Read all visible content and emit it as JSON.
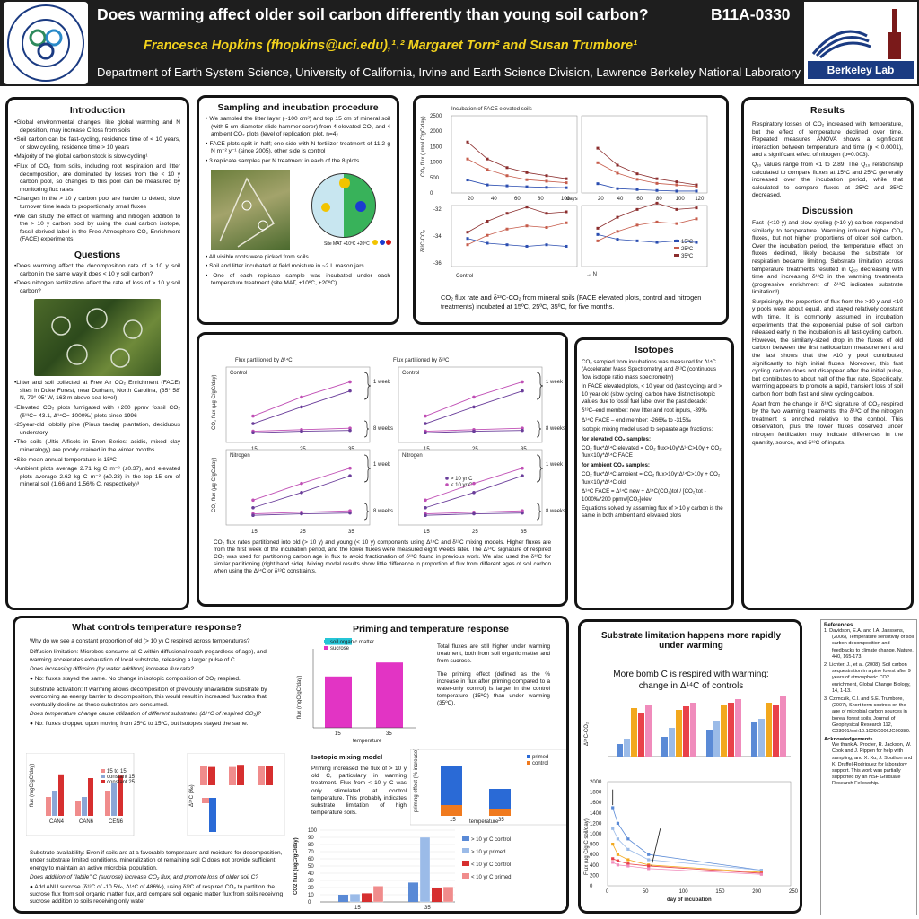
{
  "header": {
    "title": "Does warming affect older soil carbon differently than young soil carbon?",
    "code": "B11A-0330",
    "authors": "Francesca Hopkins (fhopkins@uci.edu),¹˒²  Margaret Torn² and Susan Trumbore¹",
    "department": "Department of Earth System Science, University of California, Irvine and Earth Science Division, Lawrence Berkeley National Laboratory",
    "uci_seal": "UCI Department of Earth System Science",
    "lbl_logo": "Berkeley Lab",
    "lbl_icon": "berkeley-lab-arcs-icon"
  },
  "intro": {
    "title": "Introduction",
    "items": [
      "•Global environmental changes, like global warming and N deposition, may increase C loss from soils",
      "•Soil carbon can be fast-cycling, residence time of < 10 years, or slow cycling, residence time > 10 years",
      "•Majority of the global carbon stock is slow-cycling¹",
      "•Flux of CO₂ from soils, including root respiration and litter decomposition, are dominated by losses from the < 10 y carbon pool, so changes to this pool can be measured by monitoring flux rates",
      "•Changes in the > 10 y carbon pool are harder to detect; slow turnover time leads to proportionally small fluxes",
      "•We can study the effect of warming and nitrogen addition to the > 10 y carbon pool by using the dual carbon isotope, fossil-derived label in the Free Atmosphere CO₂ Enrichment (FACE) experiments"
    ],
    "questions_title": "Questions",
    "questions": [
      "•Does warming affect the decomposition rate of > 10 y soil carbon in the same way it does < 10 y soil carbon?",
      "•Does nitrogen fertilization affect the rate of loss of > 10 y soil carbon?"
    ],
    "site": [
      "•Litter and soil collected at Free Air CO₂ Enrichment (FACE) sites in Duke Forest, near Durham, North Carolina, (35° 58' N, 79° 05' W, 163 m above sea level)",
      "•Elevated CO₂ plots fumigated with +200 ppmv fossil CO₂ (δ¹³C=-43.1, Δ¹⁴C=-1000‰) plots since 1996",
      "•25year-old loblolly pine (Pinus taeda) plantation, deciduous understory",
      "•The soils (Ultic Alfisols in Enon Series: acidic, mixed clay mineralogy) are poorly drained in the winter months",
      "•Site mean annual temperature is 15ºC",
      "•Ambient plots average 2.71 kg C m⁻² (±0.37), and elevated plots average 2.62 kg C m⁻² (±0.23) in the top 15 cm of mineral soil (1.66 and 1.56% C, respectively)³"
    ]
  },
  "methods": {
    "title": "Sampling and incubation procedure",
    "items": [
      "• We sampled the litter layer (~100 cm²) and top 15 cm of mineral soil (with 5 cm diameter slide hammer corer) from 4 elevated CO₂ and 4 ambient CO₂ plots (level of replication: plot, n=4)",
      "• FACE plots split in half; one side with N fertilizer treatment of 11.2 g N m⁻² y⁻¹ (since 2005), other side is control",
      "• 3 replicate samples per N treatment in each of the 8 plots"
    ],
    "legend": "Site MAT +10ºC +20ºC",
    "items2": [
      "• All visible roots were picked from soils",
      "• Soil and litter incubated at field moisture in ~2 L mason jars",
      "• One of each replicate sample was incubated under each temperature treatment (site MAT, +10ºC, +20ºC)"
    ]
  },
  "top_chart": {
    "title": "Incubation of FACE elevated soils",
    "ylabel1": "CO₂ flux (umol C/gC/day)",
    "ylabel2": "δ¹³C-CO₂",
    "yticks1": [
      "2500",
      "2000",
      "1500",
      "1000",
      "500",
      "0"
    ],
    "yticks2": [
      "-32",
      "-34",
      "-36"
    ],
    "xticks_left": [
      "20",
      "40",
      "60",
      "80",
      "100"
    ],
    "xticks_right": [
      "20",
      "40",
      "60",
      "80",
      "100",
      "120"
    ],
    "xunit": "days",
    "label_left": "Control",
    "label_right": "→ N",
    "legend": [
      "15ºC",
      "25ºC",
      "35ºC"
    ],
    "caption": "CO₂ flux rate and δ¹³C-CO₂ from mineral soils (FACE elevated plots, control and nitrogen treatments) incubated at 15ºC, 25ºC, 35ºC,  for five months."
  },
  "results": {
    "title": "Results",
    "p1": "Respiratory losses of CO₂ increased with temperature, but the effect of temperature declined over time.  Repeated measures ANOVA shows a significant interaction between temperature and time (p < 0.0001), and a significant effect of nitrogen (p=0.003).",
    "p2": "Q₁₀ values range from <1 to 2.89.  The Q₁₀ relationship calculated to compare fluxes at 15ºC and 25ºC generally increased over the incubation period, while that calculated to compare fluxes at 25ºC and 35ºC decreased.",
    "disc_title": "Discussion",
    "d1": "Fast- (<10 y) and slow cycling (>10 y) carbon responded similarly to temperature.  Warming induced higher CO₂ fluxes, but not higher proportions of older soil carbon.  Over the incubation period, the temperature effect on fluxes declined, likely because the substrate for respiration became limiting.  Substrate limitation across temperature treatments resulted in Q₁₀ decreasing with time and increasing δ¹³C in the warming treatments (progressive enrichment of δ¹³C indicates substrate limitation³).",
    "d2": "Surprisingly, the proportion of flux from the >10 y and <10 y pools were about equal, and stayed relatively constant with time.  It is commonly assumed in incubation experiments that the exponential pulse of soil carbon released early in the incubation is all fast-cycling carbon.  However, the similarly-sized drop in the fluxes of old carbon between the first radiocarbon measurement and the last shows that the >10 y pool contributed significantly to high initial fluxes.  Moreover, this fast cycling carbon does not disappear after the initial pulse, but contributes to about half of the flux rate.  Specifically, warming appears to promote a rapid, transient loss of soil carbon from both fast and slow cycling carbon.",
    "d3": "Apart from the change in δ¹³C signature of CO₂ respired by the two warming treatments, the δ¹³C of the nitrogen treatment is enriched relative to the control.  This observation, plus the lower fluxes observed under nitrogen fertilization may indicate differences in the quantity, source, and δ¹³C of inputs."
  },
  "partition": {
    "title_left": "Flux partitioned by Δ¹⁴C",
    "title_right": "Flux partitioned by δ¹³C",
    "control": "Control",
    "nitrogen": "Nitrogen",
    "week1": "1 week",
    "week8": "8 weeks",
    "ylabel": "CO₂ flux (µg C/gC/day)",
    "xticks": [
      "15",
      "25",
      "35"
    ],
    "legend": [
      "> 10 yr C",
      "< 10 yr C"
    ],
    "caption": "CO₂ flux rates partitioned into old (> 10 y) and young (< 10 y) components using Δ¹⁴C and δ¹³C mixing models.  Higher fluxes are from the first week of the incubation period, and the lower fluxes were measured eight weeks later. The Δ¹⁴C signature of respired CO₂ was used for partitioning carbon age in flux to avoid fractionation of  δ¹³C found in previous work.  We also used the δ¹³C for similar partitioning (right hand side).  Mixing model results show little difference in proportion of flux from different ages of soil carbon when using the Δ¹⁴C or δ¹³C constraints."
  },
  "isotopes": {
    "title": "Isotopes",
    "p1": "CO₂ sampled from incubations was measured for Δ¹⁴C (Accelerator Mass Spectrometry) and δ¹³C (continuous flow isotope ratio mass spectrometry)",
    "p2": "In FACE elevated plots, < 10 year old (fast cycling) and > 10 year old (slow cycling) carbon have distinct isotopic values due to fossil fuel label over the past decade:",
    "p3": "δ¹³C–end member: new litter and root inputs, -39‰",
    "p4": "Δ¹⁴C FACE – end member: -266‰ to -315‰",
    "p5": "Isotopic mixing model used to separate age fractions:",
    "h1": "for elevated CO₂ samples:",
    "e1": "CO₂ flux*Δ¹⁴C elevated = CO₂ flux>10y*Δ¹⁴C>10y + CO₂ flux<10y*Δ¹⁴C FACE",
    "h2": "for ambient CO₂ samples:",
    "e2": "CO₂ flux*Δ¹⁴C ambient = CO₂ flux>10y*Δ¹⁴C>10y + CO₂ flux<10y*Δ¹⁴C old",
    "e3": "Δ¹⁴C FACE = Δ¹⁴C new + Δ¹⁴C(CO₂)tot / [CO₂]tot - 1000‰*200 ppmv/[CO₂]elev",
    "p6": "Equations solved by assuming flux of > 10 y carbon is the same in both ambient and elevated plots"
  },
  "temp": {
    "title": "What controls temperature response?",
    "q": "Why do we see a constant proportion of old (> 10 y) C respired across temperatures?",
    "dl": "Diffusion limitation: Microbes consume all C within diffusional reach (regardless of age), and warming accelerates exhaustion of local substrate, releasing a larger pulse of C.",
    "dq": "Does increasing diffusion (by water addition) increase flux rate?",
    "da": "● No: fluxes stayed the same.  No change in isotopic composition of CO₂ respired.",
    "sa": "Substrate activation: If warming allows decomposition of previously unavailable substrate by overcoming an energy barrier to decomposition, this would result in increased flux rates that eventually decline as those substrates are consumed.",
    "sq": "Does temperature change cause utilization of different substrates (Δ¹⁴C of respired CO₂)?",
    "sans": "● No: fluxes dropped upon moving from 25ºC to 15ºC, but isotopes stayed the same.",
    "av": "Substrate availability: Even if soils are at a favorable temperature and moisture for decomposition, under substrate limited conditions, mineralization of remaining soil C does not provide sufficient energy to maintain an active microbial population.",
    "aq": "Does addition of \"labile\" C (sucrose) increase CO₂ flux, and promote loss of older soil C?",
    "aa": "● Add ANU sucrose (δ¹³C of -10.5‰, Δ¹⁴C of 486‰), using δ¹³C of respired CO₂ to partition the sucrose flux from soil organic matter flux, and compare soil organic matter flux from soils receiving sucrose addition to soils receiving only water",
    "chartA_x": [
      "CAN4",
      "CAN6",
      "CEN6"
    ],
    "chartA_legend": [
      "15 to 15",
      "constant 15",
      "constant 25"
    ],
    "chartA_ylabel": "flux (mgC/gC/day)",
    "chartB_ylabel": "Δ¹⁴C (‰)"
  },
  "priming": {
    "title": "Priming and temperature response",
    "legend": [
      "soil organic matter",
      "sucrose"
    ],
    "ylabel": "flux (mgC/gC/day)",
    "xlabel": "temperature",
    "xticks": [
      "15",
      "35"
    ],
    "text1": "Total fluxes are still higher under warming treatment, both from soil organic matter and from sucrose.",
    "text2": "The priming effect (defined as the % increase in flux after priming compared to a water-only control) is larger in the control temperature (15ºC) than under warming (35ºC).",
    "model_title": "Isotopic mixing model",
    "model_text": "Priming increased the flux of > 10 y old C, particularly in warming treatment.  Flux from < 10 y C was only stimulated at control temperature.  This probably indicates substrate limitation of high temperature soils.",
    "pe_ylabel": "priming effect (% increase)",
    "pe_legend": [
      "primed",
      "control"
    ],
    "pe_x": [
      "15",
      "35"
    ],
    "pe_xlabel": "temperature",
    "big_ylabel": "CO2 flux (ugC/gC/day)",
    "big_xlabel": "incubation temperature",
    "big_yticks": [
      "100",
      "90",
      "80",
      "70",
      "60",
      "50",
      "40",
      "30",
      "20",
      "10",
      "0"
    ],
    "big_x": [
      "15",
      "35"
    ],
    "big_legend": [
      "> 10 yr C control",
      "> 10 yr primed",
      "< 10 yr C control",
      "< 10 yr C primed"
    ]
  },
  "substrate": {
    "title": "Substrate limitation happens more rapidly under warming",
    "subtitle": "More bomb C is respired with warming: change in Δ¹⁴C of controls",
    "ylabel_top": "Δ¹⁴C-CO₂",
    "ylabel_bottom": "Flux (ug C/g C soil/day)",
    "xlabel": "day of incubation",
    "yticks": [
      "2000",
      "1800",
      "1600",
      "1400",
      "1200",
      "1000",
      "800",
      "600",
      "400",
      "200",
      "0"
    ],
    "xticks": [
      "0",
      "50",
      "100",
      "150",
      "200",
      "250"
    ]
  },
  "references": {
    "title": "References",
    "items": [
      "1.  Davidson, E.A. and I.A. Janssens,  (2006), Temperature sensitivity of soil carbon decomposition and feedbacks to climate change, Nature, 440, 165-173.",
      "2.  Lichter, J., et al. (2008), Soil carbon sequestration in a pine forest after 9 years of atmospheric CO2 enrichment, Global Change Biology, 14, 1-13.",
      "3.  Czimczik, C.I. and S.E. Trumbore,  (2007), Short-term controls on the age of microbial carbon sources in boreal forest soils, Journal of Geophysical Research 112, G03001/doi:10.1029/2006JG00389."
    ],
    "ack_title": "Acknowledgements",
    "ack": "We thank A. Procter, R. Jackson, W. Cook and J. Pippen for help with sampling; and X. Xu, J. Southon and K. Druffel-Rodriguez for laboratory support.  This work was partially supported by an NSF Graduate Research Fellowship."
  },
  "photos": {
    "aerial": "aerial-photo-icon",
    "forest": "forest-ring-photo-icon"
  }
}
